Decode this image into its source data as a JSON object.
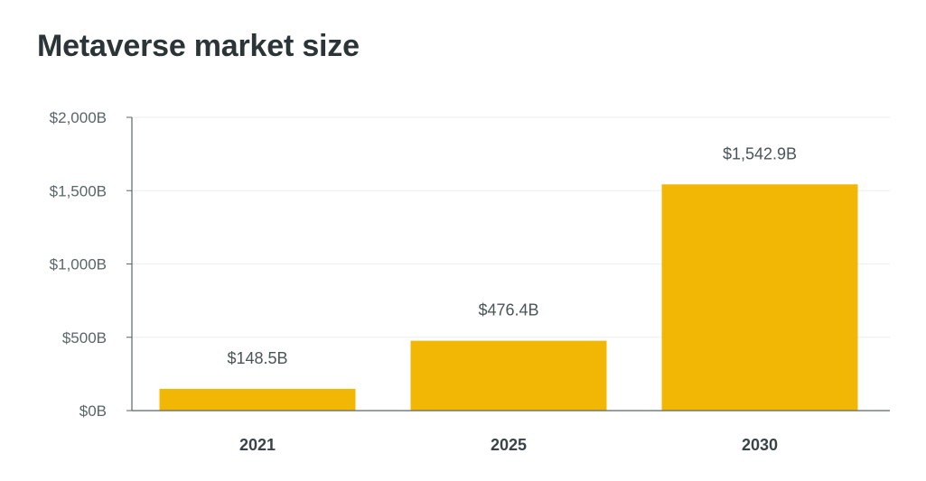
{
  "chart_data": {
    "type": "bar",
    "title": "Metaverse market size",
    "categories": [
      "2021",
      "2025",
      "2030"
    ],
    "values": [
      148.5,
      476.4,
      1542.9
    ],
    "value_labels": [
      "$148.5B",
      "$476.4B",
      "$1,542.9B"
    ],
    "yticks": [
      0,
      500,
      1000,
      1500,
      2000
    ],
    "ytick_labels": [
      "$0B",
      "$500B",
      "$1,000B",
      "$1,500B",
      "$2,000B"
    ],
    "ylim": [
      0,
      2000
    ],
    "xlabel": "",
    "ylabel": "",
    "grid": true,
    "legend": "none",
    "colors": {
      "bar": "#f2b705",
      "grid": "#eeeeee",
      "axis": "#5a6669",
      "title": "#2b3437"
    }
  }
}
